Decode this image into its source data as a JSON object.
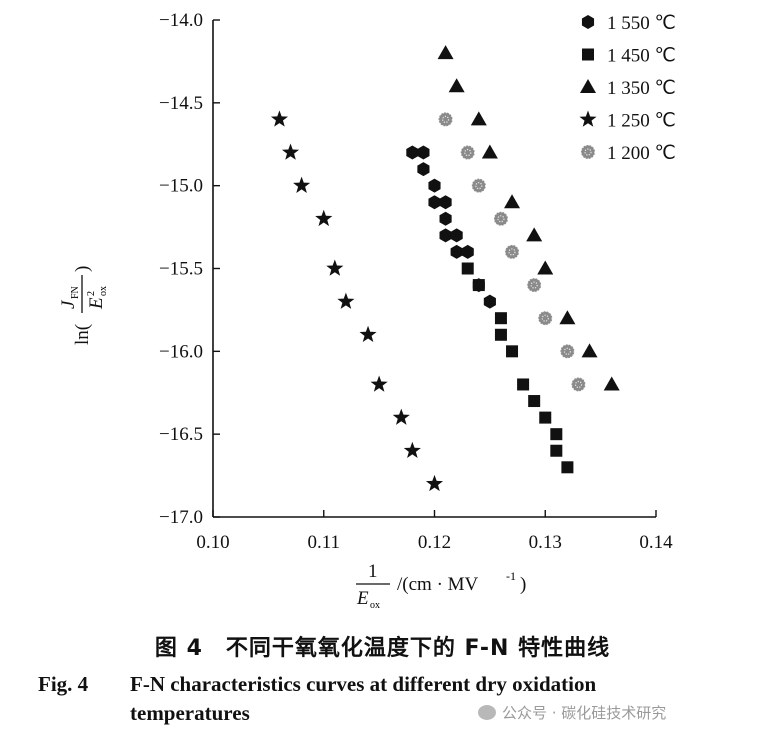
{
  "chart_data": {
    "type": "scatter",
    "title": "",
    "xlabel_num": "1",
    "xlabel_den": "E",
    "xlabel_den_sub": "ox",
    "xlabel_unit": "/(cm · MV",
    "xlabel_unit_sup": "-1",
    "xlabel_close": ")",
    "ylabel_ln": "ln(",
    "ylabel_num": "J",
    "ylabel_num_sub": "FN",
    "ylabel_den": "E",
    "ylabel_den_sup": "2",
    "ylabel_den_sub": "ox",
    "ylabel_close": ")",
    "xlim": [
      0.1,
      0.14
    ],
    "ylim": [
      -17.0,
      -14.0
    ],
    "xticks": [
      "0.10",
      "0.11",
      "0.12",
      "0.13",
      "0.14"
    ],
    "yticks": [
      "-14.0",
      "-14.5",
      "-15.0",
      "-15.5",
      "-16.0",
      "-16.5",
      "-17.0"
    ],
    "legend_position": "top-right",
    "series": [
      {
        "name": "1 550 ℃",
        "marker": "hexagon",
        "color": "#111111",
        "x": [
          0.118,
          0.119,
          0.119,
          0.12,
          0.12,
          0.121,
          0.121,
          0.121,
          0.122,
          0.122,
          0.123,
          0.124,
          0.125
        ],
        "y": [
          -14.8,
          -14.8,
          -14.9,
          -15.0,
          -15.1,
          -15.1,
          -15.2,
          -15.3,
          -15.3,
          -15.4,
          -15.4,
          -15.6,
          -15.7
        ]
      },
      {
        "name": "1 450 ℃",
        "marker": "square",
        "color": "#111111",
        "x": [
          0.123,
          0.124,
          0.126,
          0.126,
          0.127,
          0.128,
          0.129,
          0.13,
          0.131,
          0.131,
          0.132
        ],
        "y": [
          -15.5,
          -15.6,
          -15.8,
          -15.9,
          -16.0,
          -16.2,
          -16.3,
          -16.4,
          -16.5,
          -16.6,
          -16.7
        ]
      },
      {
        "name": "1 350 ℃",
        "marker": "triangle",
        "color": "#111111",
        "x": [
          0.121,
          0.122,
          0.124,
          0.125,
          0.127,
          0.129,
          0.13,
          0.132,
          0.134,
          0.136
        ],
        "y": [
          -14.2,
          -14.4,
          -14.6,
          -14.8,
          -15.1,
          -15.3,
          -15.5,
          -15.8,
          -16.0,
          -16.2
        ]
      },
      {
        "name": "1 250 ℃",
        "marker": "star",
        "color": "#111111",
        "x": [
          0.106,
          0.107,
          0.108,
          0.11,
          0.111,
          0.112,
          0.114,
          0.115,
          0.117,
          0.118,
          0.12
        ],
        "y": [
          -14.6,
          -14.8,
          -15.0,
          -15.2,
          -15.5,
          -15.7,
          -15.9,
          -16.2,
          -16.4,
          -16.6,
          -16.8
        ]
      },
      {
        "name": "1 200 ℃",
        "marker": "dotted-circle",
        "color": "#8a8a8a",
        "x": [
          0.121,
          0.123,
          0.124,
          0.126,
          0.127,
          0.129,
          0.13,
          0.132,
          0.133
        ],
        "y": [
          -14.6,
          -14.8,
          -15.0,
          -15.2,
          -15.4,
          -15.6,
          -15.8,
          -16.0,
          -16.2
        ]
      }
    ]
  },
  "caption": {
    "cn": "图 4　不同干氧氧化温度下的 F-N 特性曲线",
    "en_fig": "Fig. 4",
    "en_line1": "F-N characteristics curves at different dry oxidation",
    "en_line2": "temperatures"
  },
  "watermark": "公众号 · 碳化硅技术研究"
}
